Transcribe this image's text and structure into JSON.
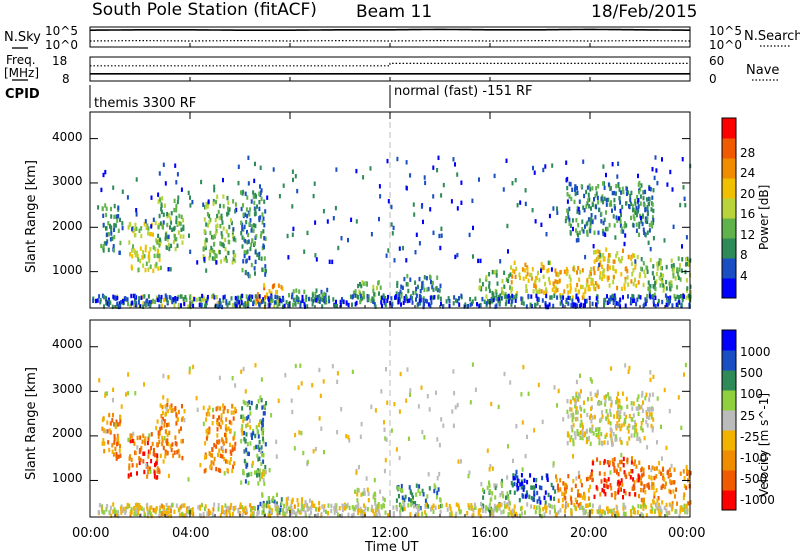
{
  "header": {
    "station": "South Pole Station (fitACF)",
    "beam": "Beam 11",
    "date": "18/Feb/2015"
  },
  "side_labels": {
    "nsky": "N.Sky",
    "freq_line1": "Freq.",
    "freq_line2": "[MHz]",
    "cpid": "CPID",
    "nsearch": "N.Search",
    "nave": "Nave"
  },
  "cpid_segments": [
    {
      "label": "themis 3300 RF",
      "start_hour": 0
    },
    {
      "label": "normal (fast) -151 RF",
      "start_hour": 12
    }
  ],
  "colors": {
    "power_scale": [
      "#0000ff",
      "#1a4fc4",
      "#2e8b57",
      "#5fb34a",
      "#b8d43a",
      "#f0c000",
      "#f08c00",
      "#f05a00",
      "#ff0000"
    ],
    "velocity_scale": [
      "#ff0000",
      "#f05a00",
      "#f08c00",
      "#f2b200",
      "#bbbbbb",
      "#8fd040",
      "#2e8b57",
      "#1a4fc4",
      "#0000ff"
    ]
  },
  "chart_data": [
    {
      "type": "line",
      "name": "nsky-nsearch",
      "x_range": [
        0,
        24
      ],
      "left_tick_labels": [
        "10^5",
        "10^0"
      ],
      "right_tick_labels": [
        "10^5",
        "10^0"
      ],
      "series": [
        {
          "name": "N.Sky",
          "x": [
            0,
            2,
            4,
            6,
            8,
            10,
            12,
            14,
            16,
            18,
            20,
            22,
            24
          ],
          "values": [
            4.2,
            4.3,
            4.3,
            4.2,
            4.2,
            4.3,
            4.3,
            4.4,
            4.3,
            4.3,
            4.4,
            4.3,
            4.2
          ]
        },
        {
          "name": "N.Search",
          "x": [
            0,
            2,
            4,
            6,
            8,
            10,
            12,
            14,
            16,
            18,
            20,
            22,
            24
          ],
          "values": [
            1.5,
            1.6,
            1.5,
            1.6,
            1.5,
            1.6,
            1.5,
            1.6,
            1.5,
            1.6,
            1.5,
            1.6,
            1.5
          ]
        }
      ]
    },
    {
      "type": "line",
      "name": "freq-nave",
      "x_range": [
        0,
        24
      ],
      "left_tick_labels": [
        "18",
        "8"
      ],
      "right_tick_labels": [
        "60",
        "0"
      ],
      "series": [
        {
          "name": "Freq.",
          "x": [
            0,
            12,
            12,
            24
          ],
          "values": [
            11,
            11,
            11,
            11
          ]
        },
        {
          "name": "Nave",
          "x": [
            0,
            12,
            12,
            24
          ],
          "values": [
            38,
            38,
            44,
            44
          ]
        }
      ]
    },
    {
      "type": "heatmap",
      "name": "power",
      "xlabel": "",
      "ylabel": "Slant Range [km]",
      "x_range": [
        0,
        24
      ],
      "ylim": [
        180,
        4600
      ],
      "y_ticks": [
        1000,
        2000,
        3000,
        4000
      ],
      "colorbar_label": "Power [dB]",
      "colorbar_ticks": [
        4,
        8,
        12,
        16,
        20,
        24,
        28
      ],
      "colorbar_range": [
        0,
        30
      ],
      "scatter_level": 5,
      "clusters": [
        {
          "t0": 0.4,
          "t1": 1.2,
          "r0": 1400,
          "r1": 2500,
          "level": 7
        },
        {
          "t0": 1.5,
          "t1": 2.8,
          "r0": 1000,
          "r1": 2100,
          "level": 14
        },
        {
          "t0": 2.7,
          "t1": 3.7,
          "r0": 1500,
          "r1": 2700,
          "level": 11
        },
        {
          "t0": 4.5,
          "t1": 5.8,
          "r0": 1200,
          "r1": 2700,
          "level": 13
        },
        {
          "t0": 6.0,
          "t1": 7.0,
          "r0": 900,
          "r1": 2800,
          "level": 9
        },
        {
          "t0": 6.6,
          "t1": 7.7,
          "r0": 250,
          "r1": 700,
          "level": 22
        },
        {
          "t0": 7.8,
          "t1": 9.5,
          "r0": 250,
          "r1": 600,
          "level": 8
        },
        {
          "t0": 1.0,
          "t1": 7.5,
          "r0": 200,
          "r1": 450,
          "level": 15
        },
        {
          "t0": 10.5,
          "t1": 11.8,
          "r0": 300,
          "r1": 800,
          "level": 10
        },
        {
          "t0": 12.2,
          "t1": 14.0,
          "r0": 350,
          "r1": 900,
          "level": 9
        },
        {
          "t0": 15.5,
          "t1": 16.8,
          "r0": 300,
          "r1": 1000,
          "level": 12
        },
        {
          "t0": 16.8,
          "t1": 18.6,
          "r0": 500,
          "r1": 1200,
          "level": 17
        },
        {
          "t0": 18.6,
          "t1": 20.0,
          "r0": 400,
          "r1": 1100,
          "level": 20
        },
        {
          "t0": 20.0,
          "t1": 22.0,
          "r0": 600,
          "r1": 1500,
          "level": 18
        },
        {
          "t0": 22.0,
          "t1": 24.0,
          "r0": 400,
          "r1": 1300,
          "level": 12
        },
        {
          "t0": 19.0,
          "t1": 22.5,
          "r0": 1800,
          "r1": 3000,
          "level": 7
        }
      ]
    },
    {
      "type": "heatmap",
      "name": "velocity",
      "xlabel": "Time UT",
      "ylabel": "Slant Range [km]",
      "x_range": [
        0,
        24
      ],
      "x_tick_labels": [
        "00:00",
        "04:00",
        "08:00",
        "12:00",
        "16:00",
        "20:00",
        "00:00"
      ],
      "ylim": [
        180,
        4600
      ],
      "y_ticks": [
        1000,
        2000,
        3000,
        4000
      ],
      "colorbar_label": "Velocity [m s^-1]",
      "colorbar_ticks": [
        "1000",
        "500",
        "100",
        "25",
        "-25",
        "-100",
        "-500",
        "-1000"
      ],
      "scatter_level": 4,
      "clusters": [
        {
          "t0": 0.4,
          "t1": 1.2,
          "r0": 1400,
          "r1": 2500,
          "level": 2
        },
        {
          "t0": 1.5,
          "t1": 2.8,
          "r0": 1000,
          "r1": 2100,
          "level": 1
        },
        {
          "t0": 2.7,
          "t1": 3.7,
          "r0": 1500,
          "r1": 2700,
          "level": 2
        },
        {
          "t0": 4.5,
          "t1": 5.8,
          "r0": 1200,
          "r1": 2700,
          "level": 2
        },
        {
          "t0": 6.0,
          "t1": 7.0,
          "r0": 900,
          "r1": 2800,
          "level": 6
        },
        {
          "t0": 6.6,
          "t1": 7.7,
          "r0": 250,
          "r1": 700,
          "level": 6
        },
        {
          "t0": 7.8,
          "t1": 9.5,
          "r0": 250,
          "r1": 600,
          "level": 3
        },
        {
          "t0": 1.0,
          "t1": 7.5,
          "r0": 200,
          "r1": 450,
          "level": 3
        },
        {
          "t0": 10.5,
          "t1": 11.8,
          "r0": 300,
          "r1": 800,
          "level": 4
        },
        {
          "t0": 12.2,
          "t1": 14.0,
          "r0": 350,
          "r1": 900,
          "level": 6
        },
        {
          "t0": 15.5,
          "t1": 16.8,
          "r0": 300,
          "r1": 1000,
          "level": 5
        },
        {
          "t0": 16.8,
          "t1": 18.6,
          "r0": 500,
          "r1": 1200,
          "level": 7
        },
        {
          "t0": 18.6,
          "t1": 20.0,
          "r0": 400,
          "r1": 1100,
          "level": 2
        },
        {
          "t0": 20.0,
          "t1": 22.0,
          "r0": 600,
          "r1": 1500,
          "level": 1
        },
        {
          "t0": 22.0,
          "t1": 24.0,
          "r0": 400,
          "r1": 1300,
          "level": 2
        },
        {
          "t0": 19.0,
          "t1": 22.5,
          "r0": 1800,
          "r1": 3000,
          "level": 4
        }
      ]
    }
  ]
}
